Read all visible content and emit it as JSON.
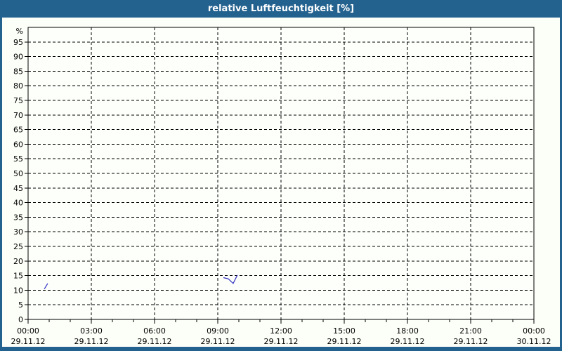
{
  "window": {
    "title": "relative Luftfeuchtigkeit [%]"
  },
  "colors": {
    "frame_blue": "#23618f",
    "title_text": "#ffffff",
    "grid_line": "#000000",
    "axis_line": "#000000",
    "series_blue": "#3030c0",
    "outer_background": "#fcfef8",
    "plot_background": "#fdfffb"
  },
  "chart_data": {
    "type": "line",
    "title": "relative Luftfeuchtigkeit [%]",
    "xlabel": "",
    "ylabel": "%",
    "ylim": [
      0,
      100
    ],
    "yticks": [
      0,
      5,
      10,
      15,
      20,
      25,
      30,
      35,
      40,
      45,
      50,
      55,
      60,
      65,
      70,
      75,
      80,
      85,
      90,
      95
    ],
    "grid_on": true,
    "grid_style": "dashed black, horizontal every 5 %, vertical every 3 h",
    "legend_position": "none",
    "x_axis": {
      "unit": "hours",
      "range_hours": [
        0,
        24
      ],
      "minor_tick_hours": 1,
      "major_tick_hours": 3,
      "major_ticks": [
        {
          "hour": 0,
          "time": "00:00",
          "date": "29.11.12"
        },
        {
          "hour": 3,
          "time": "03:00",
          "date": "29.11.12"
        },
        {
          "hour": 6,
          "time": "06:00",
          "date": "29.11.12"
        },
        {
          "hour": 9,
          "time": "09:00",
          "date": "29.11.12"
        },
        {
          "hour": 12,
          "time": "12:00",
          "date": "29.11.12"
        },
        {
          "hour": 15,
          "time": "15:00",
          "date": "29.11.12"
        },
        {
          "hour": 18,
          "time": "18:00",
          "date": "29.11.12"
        },
        {
          "hour": 21,
          "time": "21:00",
          "date": "29.11.12"
        },
        {
          "hour": 24,
          "time": "00:00",
          "date": "30.11.12"
        }
      ]
    },
    "series": [
      {
        "name": "relative Luftfeuchtigkeit",
        "color": "#3030c0",
        "segments": [
          {
            "points": [
              {
                "hour": 0.77,
                "value": 10.4
              },
              {
                "hour": 0.93,
                "value": 12.3
              }
            ]
          },
          {
            "points": [
              {
                "hour": 9.27,
                "value": 14.3
              },
              {
                "hour": 9.5,
                "value": 13.9
              },
              {
                "hour": 9.73,
                "value": 12.3
              },
              {
                "hour": 9.93,
                "value": 15.2
              }
            ]
          }
        ]
      }
    ]
  }
}
